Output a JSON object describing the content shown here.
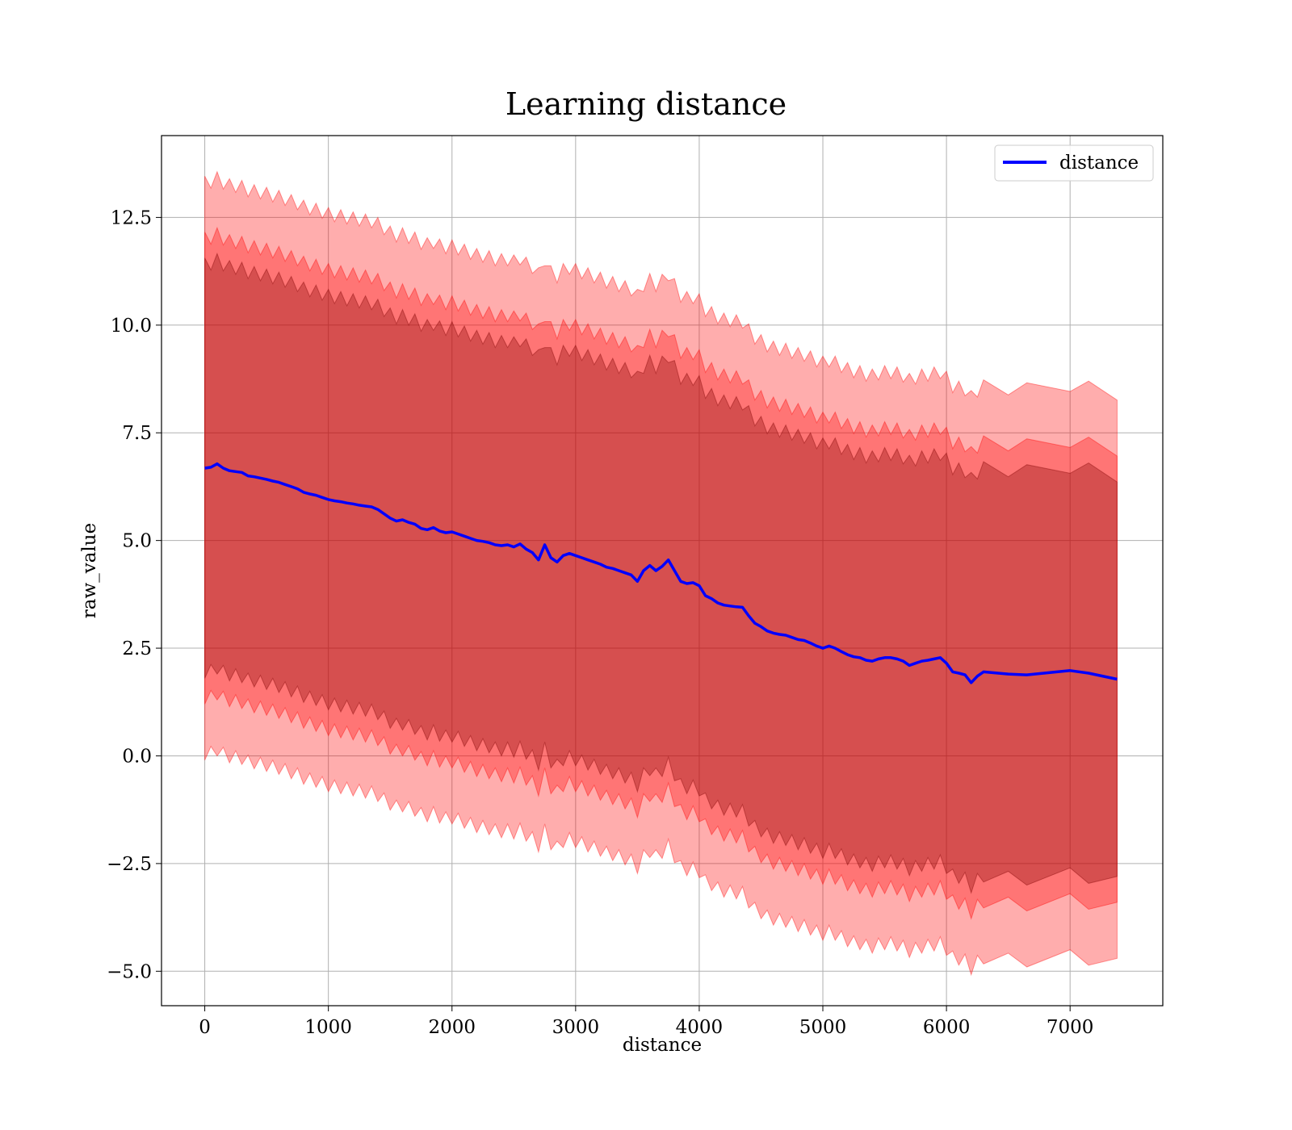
{
  "chart_data": {
    "type": "line",
    "title": "Learning distance",
    "xlabel": "distance",
    "ylabel": "raw_value",
    "xlim": [
      -350,
      7750
    ],
    "ylim": [
      -5.8,
      14.4
    ],
    "grid": true,
    "legend_position": "top-right",
    "x_ticks": [
      0,
      1000,
      2000,
      3000,
      4000,
      5000,
      6000,
      7000
    ],
    "y_ticks": [
      -5.0,
      -2.5,
      0.0,
      2.5,
      5.0,
      7.5,
      10.0,
      12.5
    ],
    "x_tick_labels": [
      "0",
      "1000",
      "2000",
      "3000",
      "4000",
      "5000",
      "6000",
      "7000"
    ],
    "y_tick_labels": [
      "−5.0",
      "−2.5",
      "0.0",
      "2.5",
      "5.0",
      "7.5",
      "10.0",
      "12.5"
    ],
    "colors": {
      "line": "#0000ff",
      "band": "#ff0000",
      "band_1sd_tint": "#800000"
    },
    "series": [
      {
        "name": "distance",
        "band_half_widths": [
          6.6,
          5.3,
          4.7
        ],
        "points": [
          [
            0,
            6.68
          ],
          [
            50,
            6.7
          ],
          [
            100,
            6.78
          ],
          [
            150,
            6.68
          ],
          [
            200,
            6.62
          ],
          [
            250,
            6.6
          ],
          [
            300,
            6.58
          ],
          [
            350,
            6.5
          ],
          [
            400,
            6.48
          ],
          [
            450,
            6.45
          ],
          [
            500,
            6.42
          ],
          [
            550,
            6.38
          ],
          [
            600,
            6.35
          ],
          [
            650,
            6.3
          ],
          [
            700,
            6.25
          ],
          [
            750,
            6.2
          ],
          [
            800,
            6.12
          ],
          [
            850,
            6.08
          ],
          [
            900,
            6.05
          ],
          [
            950,
            6.0
          ],
          [
            1000,
            5.95
          ],
          [
            1050,
            5.92
          ],
          [
            1100,
            5.9
          ],
          [
            1150,
            5.87
          ],
          [
            1200,
            5.85
          ],
          [
            1250,
            5.82
          ],
          [
            1300,
            5.8
          ],
          [
            1350,
            5.78
          ],
          [
            1400,
            5.72
          ],
          [
            1450,
            5.62
          ],
          [
            1500,
            5.52
          ],
          [
            1550,
            5.45
          ],
          [
            1600,
            5.48
          ],
          [
            1650,
            5.42
          ],
          [
            1700,
            5.38
          ],
          [
            1750,
            5.28
          ],
          [
            1800,
            5.25
          ],
          [
            1850,
            5.3
          ],
          [
            1900,
            5.22
          ],
          [
            1950,
            5.18
          ],
          [
            2000,
            5.2
          ],
          [
            2050,
            5.15
          ],
          [
            2100,
            5.1
          ],
          [
            2150,
            5.05
          ],
          [
            2200,
            5.0
          ],
          [
            2250,
            4.98
          ],
          [
            2300,
            4.95
          ],
          [
            2350,
            4.9
          ],
          [
            2400,
            4.88
          ],
          [
            2450,
            4.9
          ],
          [
            2500,
            4.85
          ],
          [
            2550,
            4.92
          ],
          [
            2600,
            4.8
          ],
          [
            2650,
            4.72
          ],
          [
            2700,
            4.55
          ],
          [
            2750,
            4.9
          ],
          [
            2800,
            4.6
          ],
          [
            2850,
            4.5
          ],
          [
            2900,
            4.65
          ],
          [
            2950,
            4.7
          ],
          [
            3000,
            4.65
          ],
          [
            3050,
            4.6
          ],
          [
            3100,
            4.55
          ],
          [
            3150,
            4.5
          ],
          [
            3200,
            4.45
          ],
          [
            3250,
            4.38
          ],
          [
            3300,
            4.35
          ],
          [
            3350,
            4.3
          ],
          [
            3400,
            4.25
          ],
          [
            3450,
            4.2
          ],
          [
            3500,
            4.05
          ],
          [
            3550,
            4.3
          ],
          [
            3600,
            4.42
          ],
          [
            3650,
            4.3
          ],
          [
            3700,
            4.4
          ],
          [
            3750,
            4.55
          ],
          [
            3800,
            4.3
          ],
          [
            3850,
            4.05
          ],
          [
            3900,
            4.0
          ],
          [
            3950,
            4.02
          ],
          [
            4000,
            3.95
          ],
          [
            4050,
            3.72
          ],
          [
            4100,
            3.65
          ],
          [
            4150,
            3.55
          ],
          [
            4200,
            3.5
          ],
          [
            4250,
            3.48
          ],
          [
            4300,
            3.46
          ],
          [
            4350,
            3.45
          ],
          [
            4400,
            3.25
          ],
          [
            4450,
            3.08
          ],
          [
            4500,
            3.0
          ],
          [
            4550,
            2.9
          ],
          [
            4600,
            2.85
          ],
          [
            4650,
            2.82
          ],
          [
            4700,
            2.8
          ],
          [
            4750,
            2.75
          ],
          [
            4800,
            2.7
          ],
          [
            4850,
            2.68
          ],
          [
            4900,
            2.62
          ],
          [
            4950,
            2.55
          ],
          [
            5000,
            2.5
          ],
          [
            5050,
            2.55
          ],
          [
            5100,
            2.5
          ],
          [
            5150,
            2.42
          ],
          [
            5200,
            2.35
          ],
          [
            5250,
            2.3
          ],
          [
            5300,
            2.28
          ],
          [
            5350,
            2.22
          ],
          [
            5400,
            2.2
          ],
          [
            5450,
            2.25
          ],
          [
            5500,
            2.28
          ],
          [
            5550,
            2.28
          ],
          [
            5600,
            2.25
          ],
          [
            5650,
            2.2
          ],
          [
            5700,
            2.1
          ],
          [
            5750,
            2.15
          ],
          [
            5800,
            2.2
          ],
          [
            5850,
            2.22
          ],
          [
            5900,
            2.25
          ],
          [
            5950,
            2.28
          ],
          [
            6000,
            2.15
          ],
          [
            6050,
            1.95
          ],
          [
            6100,
            1.92
          ],
          [
            6150,
            1.88
          ],
          [
            6200,
            1.7
          ],
          [
            6250,
            1.85
          ],
          [
            6300,
            1.95
          ],
          [
            6500,
            1.9
          ],
          [
            6650,
            1.88
          ],
          [
            7000,
            1.98
          ],
          [
            7150,
            1.92
          ],
          [
            7380,
            1.78
          ]
        ]
      }
    ]
  }
}
